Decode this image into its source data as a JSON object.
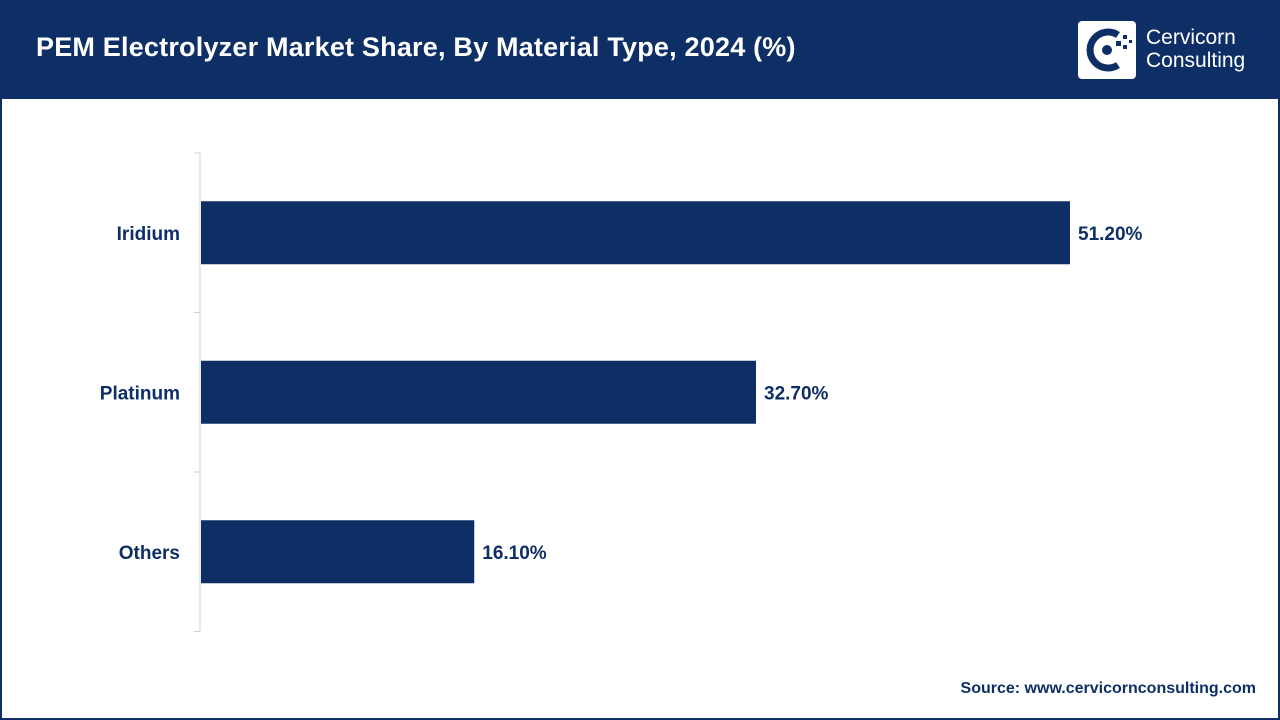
{
  "header": {
    "title": "PEM Electrolyzer Market Share, By Material Type, 2024 (%)",
    "logo_line1": "Cervicorn",
    "logo_line2": "Consulting"
  },
  "colors": {
    "brand": "#0e2f66",
    "bar": "#0e2f66",
    "background": "#ffffff"
  },
  "chart_data": {
    "type": "bar",
    "orientation": "horizontal",
    "title": "PEM Electrolyzer Market Share, By Material Type, 2024 (%)",
    "categories": [
      "Iridium",
      "Platinum",
      "Others"
    ],
    "values": [
      51.2,
      32.7,
      16.1
    ],
    "value_labels": [
      "51.20%",
      "32.70%",
      "16.10%"
    ],
    "unit": "%",
    "xlim": [
      0,
      60
    ],
    "grid": false,
    "legend": "none"
  },
  "footer": {
    "source": "Source: www.cervicornconsulting.com"
  }
}
